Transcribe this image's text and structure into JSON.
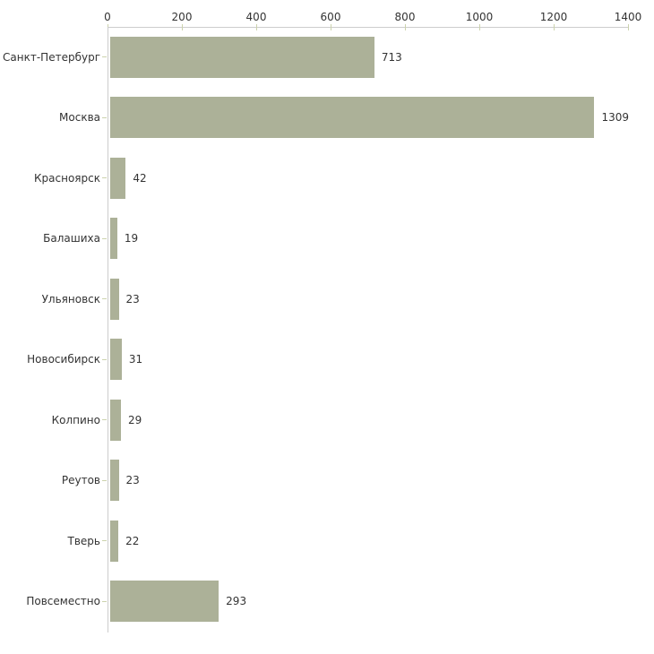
{
  "chart_data": {
    "type": "bar",
    "orientation": "horizontal",
    "title": "",
    "xlabel": "",
    "ylabel": "",
    "categories": [
      "Санкт-Петербург",
      "Москва",
      "Красноярск",
      "Балашиха",
      "Ульяновск",
      "Новосибирск",
      "Колпино",
      "Реутов",
      "Тверь",
      "Повсеместно"
    ],
    "values": [
      713,
      1309,
      42,
      19,
      23,
      31,
      29,
      23,
      22,
      293
    ],
    "value_labels": [
      "713",
      "1309",
      "42",
      "19",
      "23",
      "31",
      "29",
      "23",
      "22",
      "293"
    ],
    "xlim": [
      0,
      1400
    ],
    "x_ticks": [
      0,
      200,
      400,
      600,
      800,
      1000,
      1200,
      1400
    ],
    "x_tick_labels": [
      "0",
      "200",
      "400",
      "600",
      "800",
      "1000",
      "1200",
      "1400"
    ],
    "grid": false,
    "legend_position": "none",
    "axis_position": "top",
    "colors": {
      "bar": "#acb198",
      "axis": "#cccccc",
      "tick": "#ccd3ad",
      "text": "#333333",
      "background": "#ffffff"
    }
  }
}
